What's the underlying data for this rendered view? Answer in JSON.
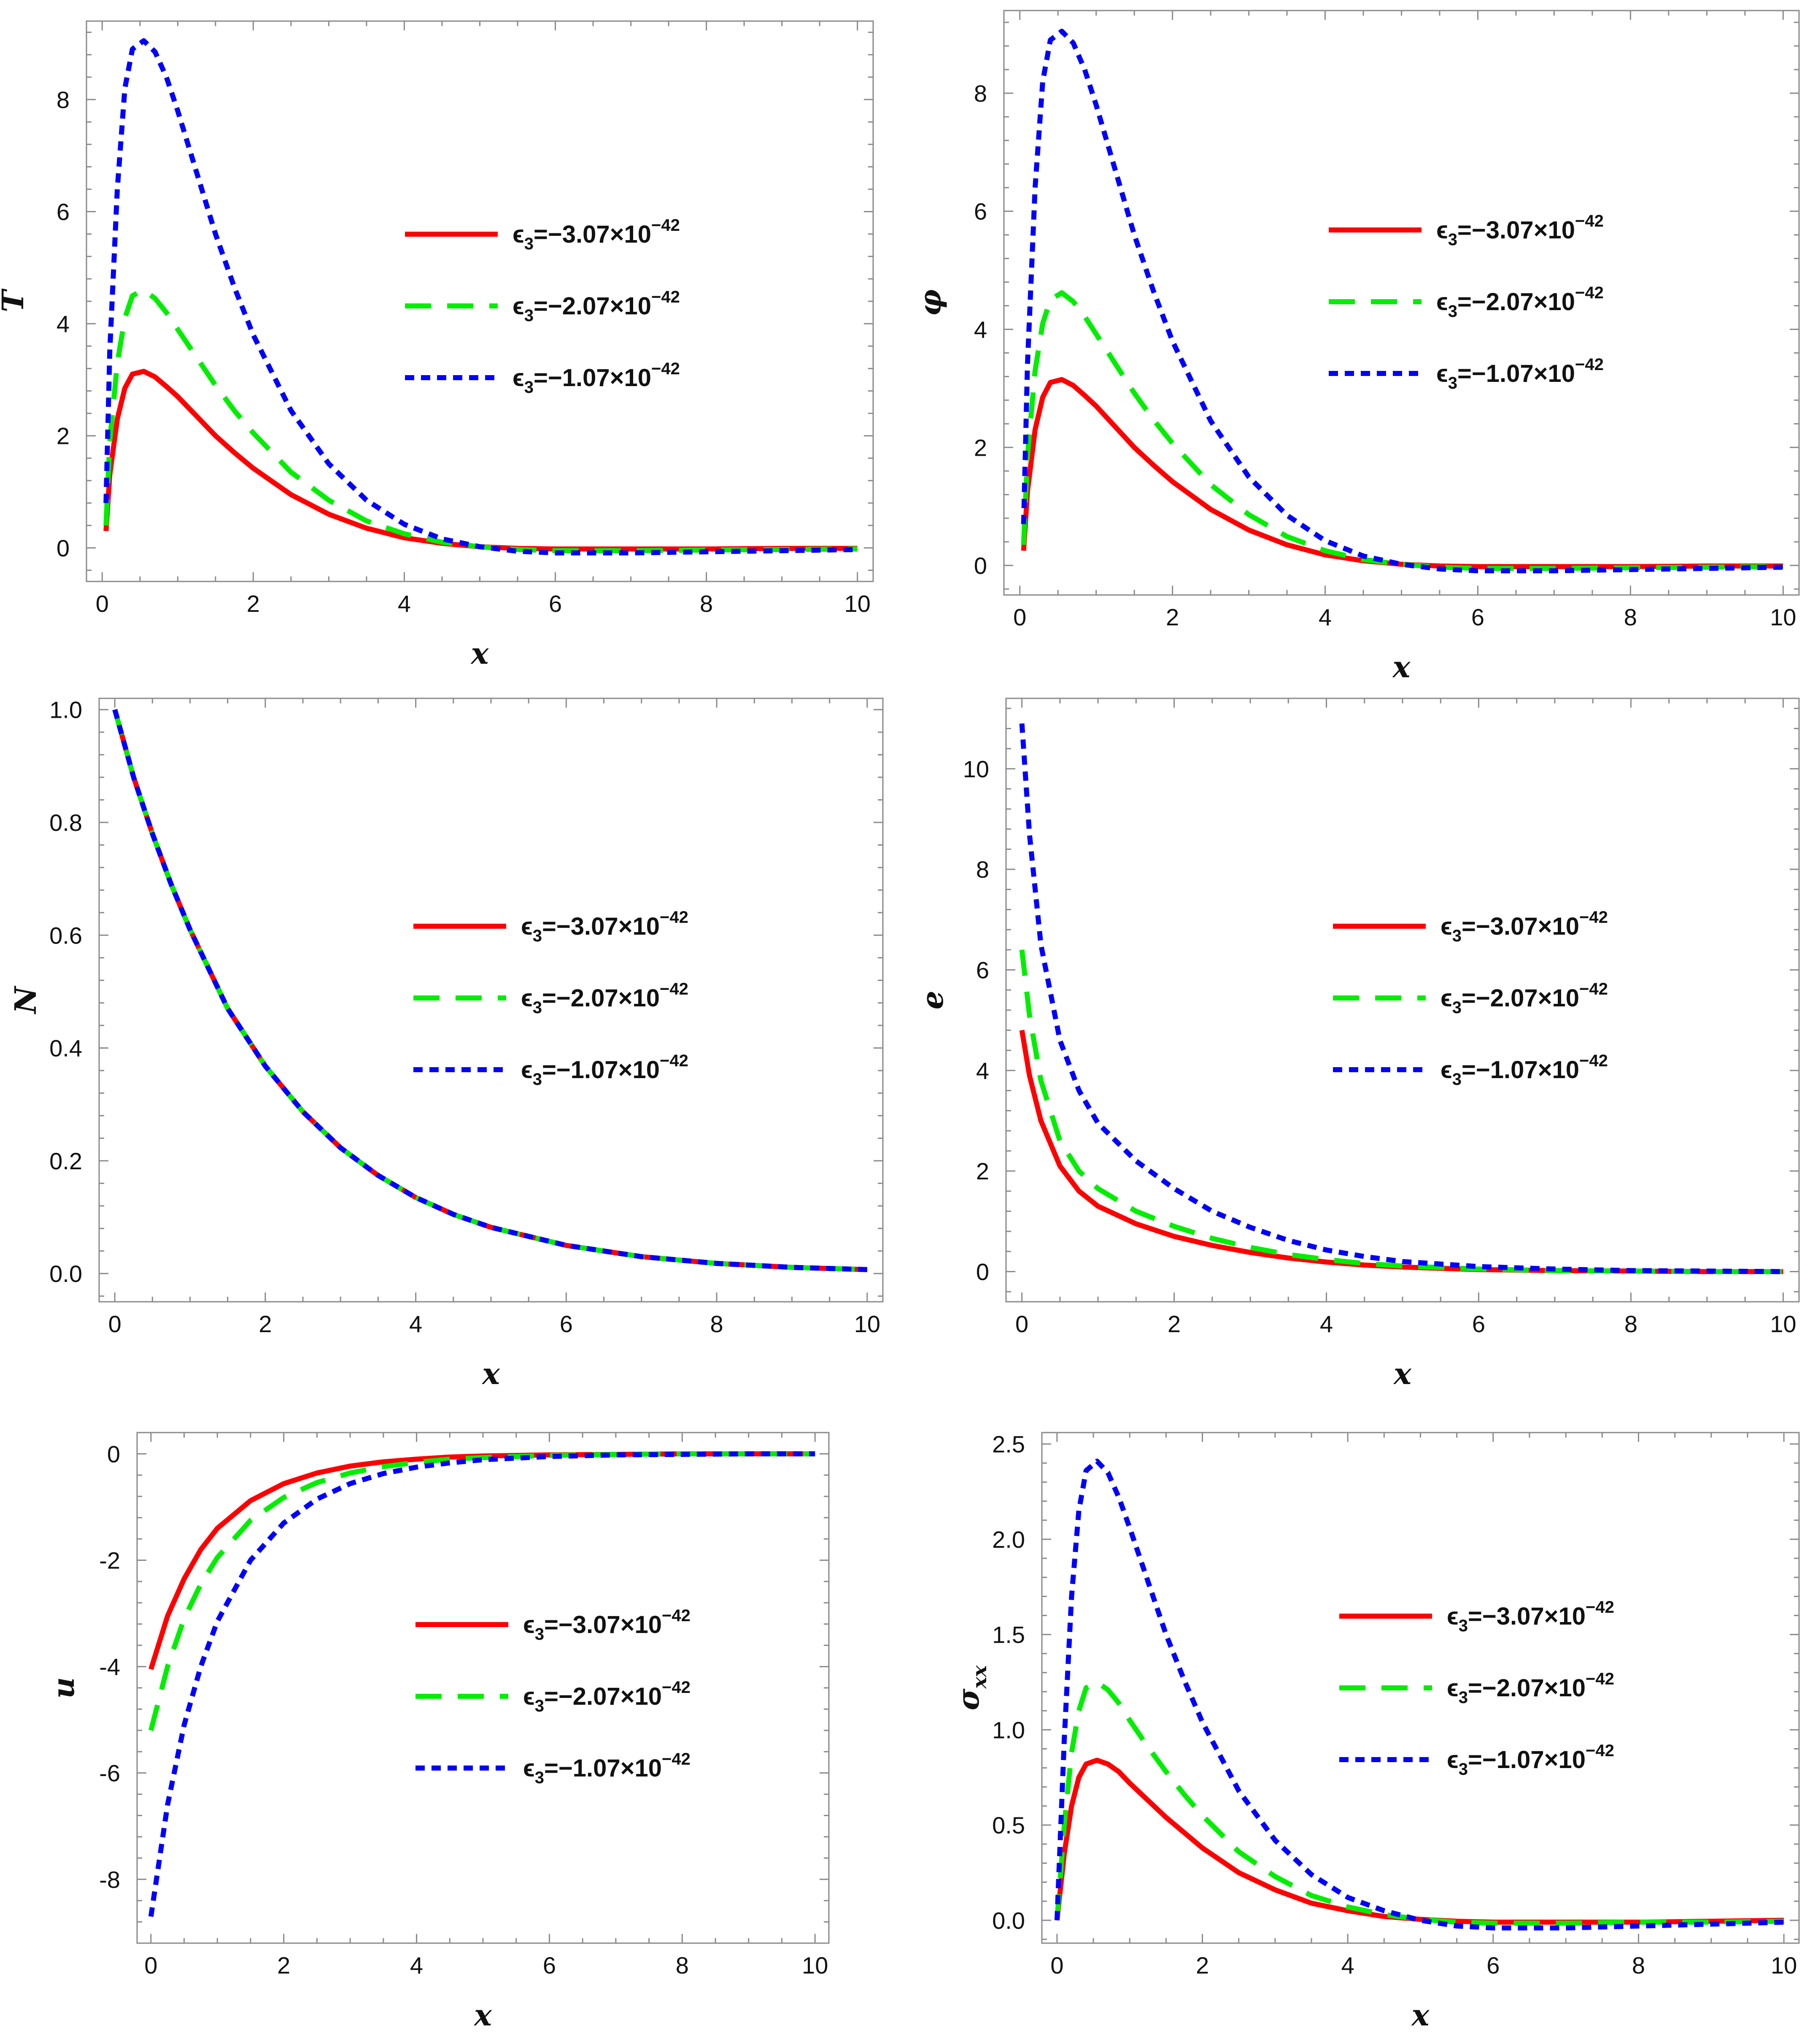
{
  "figure": {
    "legend_prefix": "ϵ",
    "legend_subscript": "3",
    "legend_eq": "=",
    "legend_mult": "×10",
    "legend_exponent": "−42",
    "legend_entries": [
      {
        "value": "−3.07",
        "color": "#ff0000",
        "style": "solid"
      },
      {
        "value": "−2.07",
        "color": "#00ee00",
        "style": "dashed"
      },
      {
        "value": "−1.07",
        "color": "#0000ff",
        "style": "dotted"
      }
    ]
  },
  "chart_data": [
    {
      "id": "T",
      "type": "line",
      "ylabel": "T",
      "ylabel_sub": "",
      "xlabel": "x",
      "xlim": [
        0,
        10
      ],
      "ylim": [
        -0.6,
        9.4
      ],
      "xticks": [
        "0",
        "2",
        "4",
        "6",
        "8",
        "10"
      ],
      "xtick_values": [
        0,
        2,
        4,
        6,
        8,
        10
      ],
      "yticks": [
        "0",
        "2",
        "4",
        "6",
        "8"
      ],
      "ytick_values": [
        0,
        2,
        4,
        6,
        8
      ],
      "legend_position": "center-right",
      "x": [
        0.05,
        0.1,
        0.2,
        0.3,
        0.4,
        0.55,
        0.7,
        0.85,
        1.0,
        1.25,
        1.5,
        1.75,
        2.0,
        2.5,
        3.0,
        3.5,
        4.0,
        4.5,
        5.0,
        5.5,
        6.0,
        7.0,
        8.0,
        9.0,
        10.0
      ],
      "series": [
        {
          "name": "ϵ3=−3.07×10−42",
          "values": [
            0.3,
            1.3,
            2.3,
            2.85,
            3.1,
            3.15,
            3.05,
            2.88,
            2.7,
            2.35,
            2.0,
            1.7,
            1.42,
            0.95,
            0.6,
            0.35,
            0.18,
            0.08,
            0.02,
            -0.01,
            -0.02,
            -0.02,
            -0.02,
            -0.01,
            -0.01
          ]
        },
        {
          "name": "ϵ3=−2.07×10−42",
          "values": [
            0.4,
            1.9,
            3.3,
            4.1,
            4.5,
            4.6,
            4.45,
            4.2,
            3.9,
            3.4,
            2.9,
            2.45,
            2.05,
            1.35,
            0.85,
            0.48,
            0.25,
            0.1,
            0.02,
            -0.03,
            -0.05,
            -0.05,
            -0.04,
            -0.03,
            -0.02
          ]
        },
        {
          "name": "ϵ3=−1.07×10−42",
          "values": [
            0.8,
            3.5,
            6.4,
            8.2,
            8.9,
            9.05,
            8.85,
            8.4,
            7.8,
            6.7,
            5.6,
            4.65,
            3.8,
            2.45,
            1.5,
            0.85,
            0.42,
            0.16,
            0.02,
            -0.06,
            -0.09,
            -0.09,
            -0.07,
            -0.05,
            -0.03
          ]
        }
      ]
    },
    {
      "id": "phi",
      "type": "line",
      "ylabel": "φ",
      "ylabel_sub": "",
      "xlabel": "x",
      "xlim": [
        0,
        10
      ],
      "ylim": [
        -0.5,
        9.4
      ],
      "xticks": [
        "0",
        "2",
        "4",
        "6",
        "8",
        "10"
      ],
      "xtick_values": [
        0,
        2,
        4,
        6,
        8,
        10
      ],
      "yticks": [
        "0",
        "2",
        "4",
        "6",
        "8"
      ],
      "ytick_values": [
        0,
        2,
        4,
        6,
        8
      ],
      "legend_position": "center-right",
      "x": [
        0.05,
        0.1,
        0.2,
        0.3,
        0.4,
        0.55,
        0.7,
        0.85,
        1.0,
        1.25,
        1.5,
        1.75,
        2.0,
        2.5,
        3.0,
        3.5,
        4.0,
        4.5,
        5.0,
        5.5,
        6.0,
        7.0,
        8.0,
        9.0,
        10.0
      ],
      "series": [
        {
          "name": "ϵ3=−3.07×10−42",
          "values": [
            0.25,
            1.25,
            2.3,
            2.85,
            3.1,
            3.15,
            3.05,
            2.88,
            2.7,
            2.35,
            2.0,
            1.7,
            1.42,
            0.95,
            0.6,
            0.35,
            0.18,
            0.08,
            0.02,
            -0.01,
            -0.02,
            -0.02,
            -0.02,
            -0.01,
            -0.01
          ]
        },
        {
          "name": "ϵ3=−2.07×10−42",
          "values": [
            0.35,
            1.85,
            3.3,
            4.1,
            4.5,
            4.62,
            4.47,
            4.22,
            3.92,
            3.42,
            2.92,
            2.47,
            2.07,
            1.37,
            0.86,
            0.49,
            0.25,
            0.1,
            0.02,
            -0.03,
            -0.05,
            -0.05,
            -0.04,
            -0.03,
            -0.02
          ]
        },
        {
          "name": "ϵ3=−1.07×10−42",
          "values": [
            0.7,
            3.4,
            6.4,
            8.2,
            8.9,
            9.05,
            8.85,
            8.4,
            7.8,
            6.7,
            5.6,
            4.65,
            3.8,
            2.45,
            1.5,
            0.85,
            0.42,
            0.16,
            0.02,
            -0.06,
            -0.09,
            -0.09,
            -0.07,
            -0.05,
            -0.03
          ]
        }
      ]
    },
    {
      "id": "N",
      "type": "line",
      "ylabel": "N",
      "ylabel_sub": "",
      "xlabel": "x",
      "xlim": [
        0,
        10
      ],
      "ylim": [
        -0.05,
        1.02
      ],
      "xticks": [
        "0",
        "2",
        "4",
        "6",
        "8",
        "10"
      ],
      "xtick_values": [
        0,
        2,
        4,
        6,
        8,
        10
      ],
      "yticks": [
        "0.0",
        "0.2",
        "0.4",
        "0.6",
        "0.8",
        "1.0"
      ],
      "ytick_values": [
        0,
        0.2,
        0.4,
        0.6,
        0.8,
        1.0
      ],
      "legend_position": "center-right",
      "x": [
        0,
        0.25,
        0.5,
        0.75,
        1.0,
        1.5,
        2.0,
        2.5,
        3.0,
        3.5,
        4.0,
        4.5,
        5.0,
        6.0,
        7.0,
        8.0,
        9.0,
        10.0
      ],
      "series": [
        {
          "name": "ϵ3=−3.07×10−42",
          "values": [
            1.0,
            0.88,
            0.78,
            0.69,
            0.61,
            0.47,
            0.368,
            0.287,
            0.223,
            0.174,
            0.135,
            0.105,
            0.082,
            0.05,
            0.03,
            0.018,
            0.011,
            0.007
          ]
        },
        {
          "name": "ϵ3=−2.07×10−42",
          "values": [
            1.0,
            0.88,
            0.78,
            0.69,
            0.61,
            0.47,
            0.368,
            0.287,
            0.223,
            0.174,
            0.135,
            0.105,
            0.082,
            0.05,
            0.03,
            0.018,
            0.011,
            0.007
          ]
        },
        {
          "name": "ϵ3=−1.07×10−42",
          "values": [
            1.0,
            0.88,
            0.78,
            0.69,
            0.61,
            0.47,
            0.368,
            0.287,
            0.223,
            0.174,
            0.135,
            0.105,
            0.082,
            0.05,
            0.03,
            0.018,
            0.011,
            0.007
          ]
        }
      ]
    },
    {
      "id": "e",
      "type": "line",
      "ylabel": "e",
      "ylabel_sub": "",
      "xlabel": "x",
      "xlim": [
        0,
        10
      ],
      "ylim": [
        -0.6,
        11.4
      ],
      "xticks": [
        "0",
        "2",
        "4",
        "6",
        "8",
        "10"
      ],
      "xtick_values": [
        0,
        2,
        4,
        6,
        8,
        10
      ],
      "yticks": [
        "0",
        "2",
        "4",
        "6",
        "8",
        "10"
      ],
      "ytick_values": [
        0,
        2,
        4,
        6,
        8,
        10
      ],
      "legend_position": "center-right",
      "x": [
        0,
        0.1,
        0.25,
        0.5,
        0.75,
        1.0,
        1.5,
        2.0,
        2.5,
        3.0,
        3.5,
        4.0,
        4.5,
        5.0,
        6.0,
        7.0,
        8.0,
        9.0,
        10.0
      ],
      "series": [
        {
          "name": "ϵ3=−3.07×10−42",
          "values": [
            4.8,
            3.9,
            3.0,
            2.1,
            1.6,
            1.3,
            0.95,
            0.7,
            0.52,
            0.38,
            0.27,
            0.19,
            0.13,
            0.09,
            0.04,
            0.02,
            0.01,
            0.0,
            0.0
          ]
        },
        {
          "name": "ϵ3=−2.07×10−42",
          "values": [
            6.4,
            5.1,
            3.8,
            2.6,
            2.0,
            1.65,
            1.2,
            0.9,
            0.66,
            0.48,
            0.34,
            0.24,
            0.16,
            0.11,
            0.05,
            0.02,
            0.01,
            0.0,
            0.0
          ]
        },
        {
          "name": "ϵ3=−1.07×10−42",
          "values": [
            10.9,
            8.7,
            6.5,
            4.6,
            3.6,
            2.95,
            2.2,
            1.65,
            1.2,
            0.88,
            0.62,
            0.43,
            0.3,
            0.2,
            0.1,
            0.05,
            0.02,
            0.01,
            0.0
          ]
        }
      ]
    },
    {
      "id": "u",
      "type": "line",
      "ylabel": "u",
      "ylabel_sub": "",
      "xlabel": "x",
      "xlim": [
        0,
        10
      ],
      "ylim": [
        -9.2,
        0.4
      ],
      "xticks": [
        "0",
        "2",
        "4",
        "6",
        "8",
        "10"
      ],
      "xtick_values": [
        0,
        2,
        4,
        6,
        8,
        10
      ],
      "yticks": [
        "-8",
        "-6",
        "-4",
        "-2",
        "0"
      ],
      "ytick_values": [
        -8,
        -6,
        -4,
        -2,
        0
      ],
      "legend_position": "center-right",
      "x": [
        0,
        0.25,
        0.5,
        0.75,
        1.0,
        1.5,
        2.0,
        2.5,
        3.0,
        3.5,
        4.0,
        4.5,
        5.0,
        6.0,
        7.0,
        8.0,
        9.0,
        10.0
      ],
      "series": [
        {
          "name": "ϵ3=−3.07×10−42",
          "values": [
            -4.05,
            -3.05,
            -2.35,
            -1.8,
            -1.4,
            -0.88,
            -0.56,
            -0.36,
            -0.23,
            -0.15,
            -0.1,
            -0.06,
            -0.04,
            -0.02,
            -0.01,
            0.0,
            0.0,
            0.0
          ]
        },
        {
          "name": "ϵ3=−2.07×10−42",
          "values": [
            -5.2,
            -4.0,
            -3.1,
            -2.45,
            -1.95,
            -1.25,
            -0.82,
            -0.54,
            -0.36,
            -0.24,
            -0.16,
            -0.1,
            -0.07,
            -0.03,
            -0.01,
            0.0,
            0.0,
            0.0
          ]
        },
        {
          "name": "ϵ3=−1.07×10−42",
          "values": [
            -8.7,
            -6.6,
            -5.1,
            -4.0,
            -3.15,
            -2.0,
            -1.3,
            -0.85,
            -0.56,
            -0.37,
            -0.25,
            -0.17,
            -0.11,
            -0.05,
            -0.02,
            -0.01,
            0.0,
            0.0
          ]
        }
      ]
    },
    {
      "id": "sigma",
      "type": "line",
      "ylabel": "σ",
      "ylabel_sub": "xx",
      "xlabel": "x",
      "xlim": [
        0,
        10
      ],
      "ylim": [
        -0.12,
        2.56
      ],
      "xticks": [
        "0",
        "2",
        "4",
        "6",
        "8",
        "10"
      ],
      "xtick_values": [
        0,
        2,
        4,
        6,
        8,
        10
      ],
      "yticks": [
        "0.0",
        "0.5",
        "1.0",
        "1.5",
        "2.0",
        "2.5"
      ],
      "ytick_values": [
        0,
        0.5,
        1.0,
        1.5,
        2.0,
        2.5
      ],
      "legend_position": "center-right",
      "x": [
        0.0,
        0.1,
        0.2,
        0.3,
        0.4,
        0.55,
        0.7,
        0.85,
        1.0,
        1.25,
        1.5,
        1.75,
        2.0,
        2.5,
        3.0,
        3.5,
        4.0,
        4.5,
        5.0,
        5.5,
        6.0,
        7.0,
        8.0,
        9.0,
        10.0
      ],
      "series": [
        {
          "name": "ϵ3=−3.07×10−42",
          "values": [
            0.0,
            0.35,
            0.6,
            0.75,
            0.82,
            0.84,
            0.82,
            0.78,
            0.72,
            0.63,
            0.54,
            0.46,
            0.38,
            0.25,
            0.16,
            0.09,
            0.05,
            0.02,
            0.005,
            -0.005,
            -0.01,
            -0.01,
            -0.01,
            -0.005,
            0.0
          ]
        },
        {
          "name": "ϵ3=−2.07×10−42",
          "values": [
            0.0,
            0.5,
            0.88,
            1.1,
            1.22,
            1.25,
            1.21,
            1.14,
            1.05,
            0.91,
            0.78,
            0.66,
            0.55,
            0.36,
            0.23,
            0.13,
            0.07,
            0.03,
            0.005,
            -0.01,
            -0.015,
            -0.015,
            -0.01,
            -0.01,
            -0.005
          ]
        },
        {
          "name": "ϵ3=−1.07×10−42",
          "values": [
            0.0,
            0.95,
            1.7,
            2.15,
            2.36,
            2.41,
            2.35,
            2.22,
            2.06,
            1.78,
            1.5,
            1.26,
            1.04,
            0.68,
            0.42,
            0.24,
            0.12,
            0.05,
            0.0,
            -0.03,
            -0.04,
            -0.04,
            -0.03,
            -0.02,
            -0.01
          ]
        }
      ]
    }
  ]
}
